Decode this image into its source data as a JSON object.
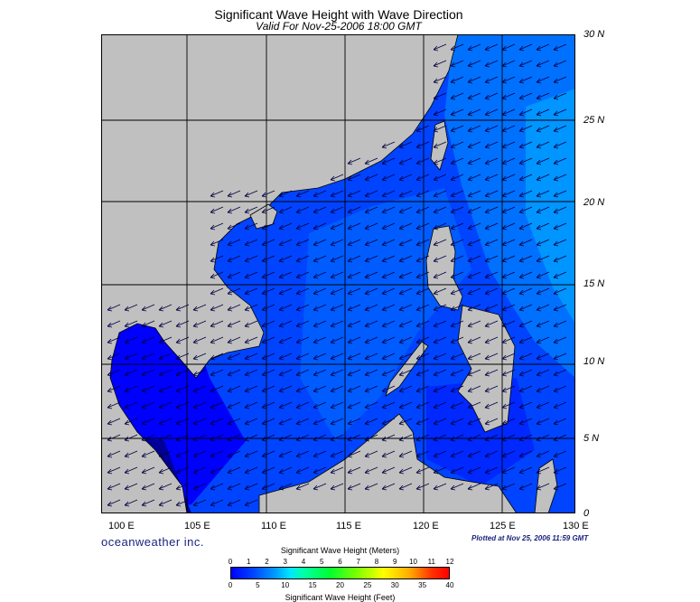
{
  "title": "Significant Wave Height with Wave Direction",
  "subtitle": "Valid For Nov-25-2006 18:00 GMT",
  "lat_labels": [
    "30 N",
    "25 N",
    "20 N",
    "15 N",
    "10 N",
    "5 N",
    "0"
  ],
  "lon_labels": [
    "100 E",
    "105 E",
    "110 E",
    "115 E",
    "120 E",
    "125 E",
    "130 E"
  ],
  "branding": "oceanweather inc.",
  "plotted_at": "Plotted at Nov 25, 2006 11:59 GMT",
  "colorbar": {
    "title_meters": "Significant Wave Height (Meters)",
    "title_feet": "Significant Wave Height (Feet)",
    "meters_ticks": [
      "0",
      "1",
      "2",
      "3",
      "4",
      "5",
      "6",
      "7",
      "8",
      "9",
      "10",
      "11",
      "12"
    ],
    "feet_ticks": [
      "0",
      "5",
      "10",
      "15",
      "20",
      "25",
      "30",
      "35",
      "40"
    ]
  },
  "colors": {
    "land": "#c0c0c0",
    "sea_dark": "#0000ff",
    "sea_mid": "#0044ff",
    "sea_light": "#0077ff",
    "sea_lighter": "#0099ff",
    "coast": "#000000",
    "grid": "#000000"
  }
}
